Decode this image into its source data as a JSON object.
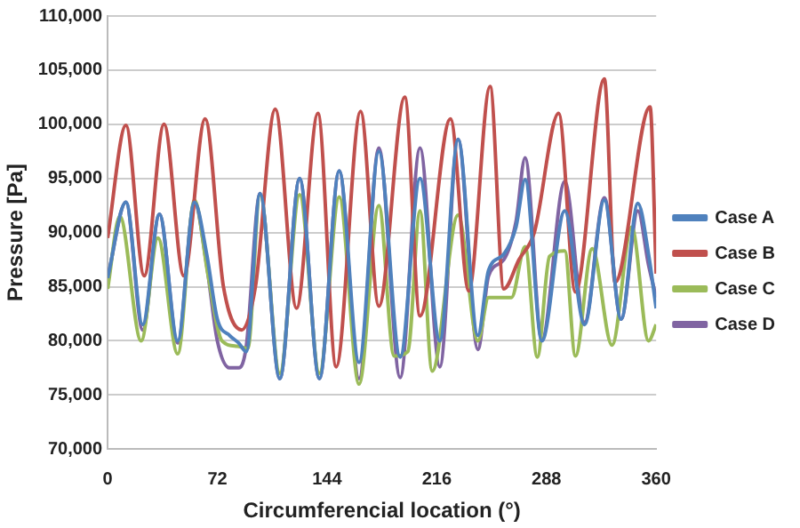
{
  "chart_data": {
    "type": "line",
    "xlabel": "Circumferencial location (°)",
    "ylabel": "Pressure [Pa]",
    "xlim": [
      0,
      360
    ],
    "xticks": [
      0,
      72,
      144,
      216,
      288,
      360
    ],
    "ylim": [
      70000,
      110000
    ],
    "yticks": [
      {
        "value": 70000,
        "label": "70,000"
      },
      {
        "value": 75000,
        "label": "75,000"
      },
      {
        "value": 80000,
        "label": "80,000"
      },
      {
        "value": 85000,
        "label": "85,000"
      },
      {
        "value": 90000,
        "label": "90,000"
      },
      {
        "value": 95000,
        "label": "95,000"
      },
      {
        "value": 100000,
        "label": "100,000"
      },
      {
        "value": 105000,
        "label": "105,000"
      },
      {
        "value": 110000,
        "label": "110,000"
      }
    ],
    "grid": "y",
    "legend": "right",
    "series": [
      {
        "name": "Case A",
        "color": "#4f81bd",
        "x": [
          0,
          12,
          23,
          34,
          46,
          57,
          65,
          72,
          80,
          86,
          91,
          100,
          113,
          126,
          139,
          152,
          165,
          178,
          192,
          205,
          218,
          230,
          243,
          250,
          260,
          268,
          274,
          285,
          300,
          313,
          326,
          337,
          348,
          355,
          360
        ],
        "values": [
          85800,
          92800,
          81500,
          91700,
          80000,
          92800,
          88000,
          82000,
          80500,
          79800,
          79000,
          93600,
          76500,
          95000,
          76500,
          95700,
          78000,
          97500,
          78500,
          95000,
          80000,
          98600,
          80500,
          86500,
          88000,
          90500,
          94900,
          80000,
          92000,
          81500,
          93000,
          82000,
          92700,
          88000,
          83000
        ]
      },
      {
        "name": "Case B",
        "color": "#c0504d",
        "x": [
          0,
          12,
          24,
          37,
          50,
          64,
          76,
          88,
          97,
          110,
          124,
          138,
          150,
          166,
          178,
          195,
          205,
          225,
          237,
          251,
          260,
          270,
          280,
          296,
          307,
          326,
          333,
          356,
          360
        ],
        "values": [
          89500,
          99900,
          86000,
          100000,
          86000,
          100500,
          85000,
          81000,
          85000,
          101400,
          83000,
          101000,
          77600,
          101200,
          83200,
          102500,
          82300,
          100500,
          84600,
          103500,
          84800,
          87500,
          90000,
          101000,
          84500,
          104200,
          85400,
          101600,
          86200
        ]
      },
      {
        "name": "Case C",
        "color": "#9bbb59",
        "x": [
          0,
          8,
          22,
          33,
          46,
          57,
          66,
          75,
          85,
          92,
          100,
          113,
          126,
          139,
          152,
          165,
          178,
          188,
          197,
          205,
          213,
          230,
          243,
          250,
          265,
          274,
          282,
          290,
          300,
          307,
          318,
          331,
          344,
          355,
          360
        ],
        "values": [
          84800,
          91500,
          80000,
          89500,
          78800,
          93000,
          86000,
          80000,
          79500,
          79300,
          93500,
          77000,
          93500,
          77000,
          93300,
          76000,
          92500,
          78600,
          79000,
          92000,
          77200,
          91600,
          80000,
          84000,
          84000,
          88700,
          78500,
          87800,
          88300,
          78600,
          88500,
          79600,
          90500,
          80000,
          81500
        ]
      },
      {
        "name": "Case D",
        "color": "#8064a2",
        "x": [
          0,
          12,
          23,
          34,
          46,
          57,
          65,
          72,
          80,
          86,
          91,
          100,
          113,
          126,
          139,
          152,
          165,
          178,
          192,
          205,
          218,
          230,
          243,
          250,
          260,
          268,
          274,
          285,
          300,
          313,
          326,
          337,
          348,
          355,
          360
        ],
        "values": [
          85800,
          92800,
          81000,
          91700,
          79800,
          92800,
          87000,
          80000,
          77500,
          77500,
          79500,
          93600,
          76500,
          95000,
          76500,
          95700,
          76500,
          97800,
          76600,
          97800,
          77600,
          98600,
          79200,
          86000,
          87500,
          91000,
          96900,
          80100,
          94700,
          81700,
          93200,
          82000,
          92000,
          87000,
          84000
        ]
      }
    ]
  }
}
